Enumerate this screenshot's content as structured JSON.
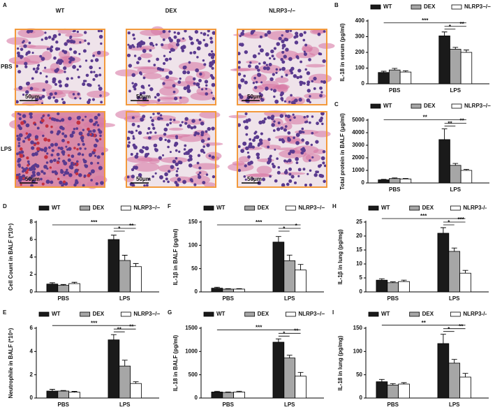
{
  "panel_a": {
    "label": "A",
    "columns": [
      "WT",
      "DEX",
      "NLRP3−/−"
    ],
    "rows": [
      "PBS",
      "LPS"
    ],
    "scale_bars": [
      "50μm",
      "50μm",
      "50μm",
      "50μm",
      "50μm",
      "50μm"
    ]
  },
  "chart_data": [
    {
      "panel": "B",
      "type": "bar",
      "ylabel": "IL-18 in serum (pg/ml)",
      "categories": [
        "PBS",
        "LPS"
      ],
      "series": [
        {
          "name": "WT",
          "color": "#1a1a1a",
          "values": [
            72,
            305
          ],
          "errors": [
            8,
            25
          ]
        },
        {
          "name": "DEX",
          "color": "#a6a6a6",
          "values": [
            88,
            220
          ],
          "errors": [
            10,
            12
          ]
        },
        {
          "name": "NLRP3−/−",
          "color": "#ffffff",
          "values": [
            75,
            200
          ],
          "errors": [
            8,
            15
          ]
        }
      ],
      "ylim": [
        0,
        400
      ],
      "yticks": [
        0,
        100,
        200,
        300,
        400
      ],
      "significance": [
        "***",
        "*",
        "**"
      ]
    },
    {
      "panel": "C",
      "type": "bar",
      "ylabel": "Total protein in BALF (μg/ml)",
      "categories": [
        "PBS",
        "LPS"
      ],
      "series": [
        {
          "name": "WT",
          "color": "#1a1a1a",
          "values": [
            250,
            3450
          ],
          "errors": [
            40,
            850
          ]
        },
        {
          "name": "DEX",
          "color": "#a6a6a6",
          "values": [
            350,
            1400
          ],
          "errors": [
            50,
            150
          ]
        },
        {
          "name": "NLRP3−/−",
          "color": "#ffffff",
          "values": [
            320,
            1000
          ],
          "errors": [
            40,
            80
          ]
        }
      ],
      "ylim": [
        0,
        5000
      ],
      "yticks": [
        0,
        1000,
        2000,
        3000,
        4000,
        5000
      ],
      "significance": [
        "**",
        "**",
        "**"
      ]
    },
    {
      "panel": "D",
      "type": "bar",
      "ylabel": "Cell Count in BALF (*10⁵)",
      "categories": [
        "PBS",
        "LPS"
      ],
      "series": [
        {
          "name": "WT",
          "color": "#1a1a1a",
          "values": [
            0.9,
            6.0
          ],
          "errors": [
            0.15,
            0.5
          ]
        },
        {
          "name": "DEX",
          "color": "#a6a6a6",
          "values": [
            0.75,
            3.6
          ],
          "errors": [
            0.1,
            0.6
          ]
        },
        {
          "name": "NLRP3−/−",
          "color": "#ffffff",
          "values": [
            0.95,
            2.9
          ],
          "errors": [
            0.15,
            0.35
          ]
        }
      ],
      "ylim": [
        0,
        8
      ],
      "yticks": [
        0,
        2,
        4,
        6,
        8
      ],
      "significance": [
        "***",
        "*",
        "**"
      ]
    },
    {
      "panel": "F",
      "type": "bar",
      "ylabel": "IL-1β in BALF (pg/ml)",
      "categories": [
        "PBS",
        "LPS"
      ],
      "series": [
        {
          "name": "WT",
          "color": "#1a1a1a",
          "values": [
            8,
            107
          ],
          "errors": [
            2,
            12
          ]
        },
        {
          "name": "DEX",
          "color": "#a6a6a6",
          "values": [
            6,
            67
          ],
          "errors": [
            1,
            12
          ]
        },
        {
          "name": "NLRP3−/−",
          "color": "#ffffff",
          "values": [
            6,
            47
          ],
          "errors": [
            1,
            12
          ]
        }
      ],
      "ylim": [
        0,
        150
      ],
      "yticks": [
        0,
        50,
        100,
        150
      ],
      "significance": [
        "***",
        "*",
        "*"
      ]
    },
    {
      "panel": "H",
      "type": "bar",
      "ylabel": "IL-1β in lung (pg/mg)",
      "categories": [
        "PBS",
        "LPS"
      ],
      "series": [
        {
          "name": "WT",
          "color": "#1a1a1a",
          "values": [
            4.2,
            21
          ],
          "errors": [
            0.5,
            2
          ]
        },
        {
          "name": "DEX",
          "color": "#a6a6a6",
          "values": [
            3.3,
            14.5
          ],
          "errors": [
            0.3,
            1.2
          ]
        },
        {
          "name": "NLRP3-/-",
          "color": "#ffffff",
          "values": [
            3.7,
            6.7
          ],
          "errors": [
            0.5,
            1
          ]
        }
      ],
      "ylim": [
        0,
        25
      ],
      "yticks": [
        0,
        5,
        10,
        15,
        20,
        25
      ],
      "significance": [
        "***",
        "*",
        "***"
      ]
    },
    {
      "panel": "E",
      "type": "bar",
      "ylabel": "Neutrophile in BALF (*10⁵)",
      "categories": [
        "PBS",
        "LPS"
      ],
      "series": [
        {
          "name": "WT",
          "color": "#1a1a1a",
          "values": [
            0.6,
            5.0
          ],
          "errors": [
            0.15,
            0.45
          ]
        },
        {
          "name": "DEX",
          "color": "#a6a6a6",
          "values": [
            0.6,
            2.75
          ],
          "errors": [
            0.05,
            0.5
          ]
        },
        {
          "name": "NLRP3−/−",
          "color": "#ffffff",
          "values": [
            0.5,
            1.25
          ],
          "errors": [
            0.07,
            0.15
          ]
        }
      ],
      "ylim": [
        0,
        6
      ],
      "yticks": [
        0,
        2,
        4,
        6
      ],
      "significance": [
        "***",
        "**",
        "**"
      ]
    },
    {
      "panel": "G",
      "type": "bar",
      "ylabel": "IL-18 in BALF (pg/ml)",
      "categories": [
        "PBS",
        "LPS"
      ],
      "series": [
        {
          "name": "WT",
          "color": "#1a1a1a",
          "values": [
            130,
            1200
          ],
          "errors": [
            15,
            70
          ]
        },
        {
          "name": "DEX",
          "color": "#a6a6a6",
          "values": [
            120,
            860
          ],
          "errors": [
            10,
            60
          ]
        },
        {
          "name": "NLRP3−/−",
          "color": "#ffffff",
          "values": [
            130,
            470
          ],
          "errors": [
            15,
            80
          ]
        }
      ],
      "ylim": [
        0,
        1500
      ],
      "yticks": [
        0,
        500,
        1000,
        1500
      ],
      "significance": [
        "***",
        "*",
        "**"
      ]
    },
    {
      "panel": "I",
      "type": "bar",
      "ylabel": "IL-18 in lung (pg/mg)",
      "categories": [
        "PBS",
        "LPS"
      ],
      "series": [
        {
          "name": "WT",
          "color": "#1a1a1a",
          "values": [
            35,
            117
          ],
          "errors": [
            5,
            20
          ]
        },
        {
          "name": "DEX",
          "color": "#a6a6a6",
          "values": [
            28,
            75
          ],
          "errors": [
            3,
            8
          ]
        },
        {
          "name": "NLRP3-/-",
          "color": "#ffffff",
          "values": [
            30,
            45
          ],
          "errors": [
            3,
            8
          ]
        }
      ],
      "ylim": [
        0,
        150
      ],
      "yticks": [
        0,
        50,
        100,
        150
      ],
      "significance": [
        "**",
        "*",
        "**"
      ]
    }
  ]
}
